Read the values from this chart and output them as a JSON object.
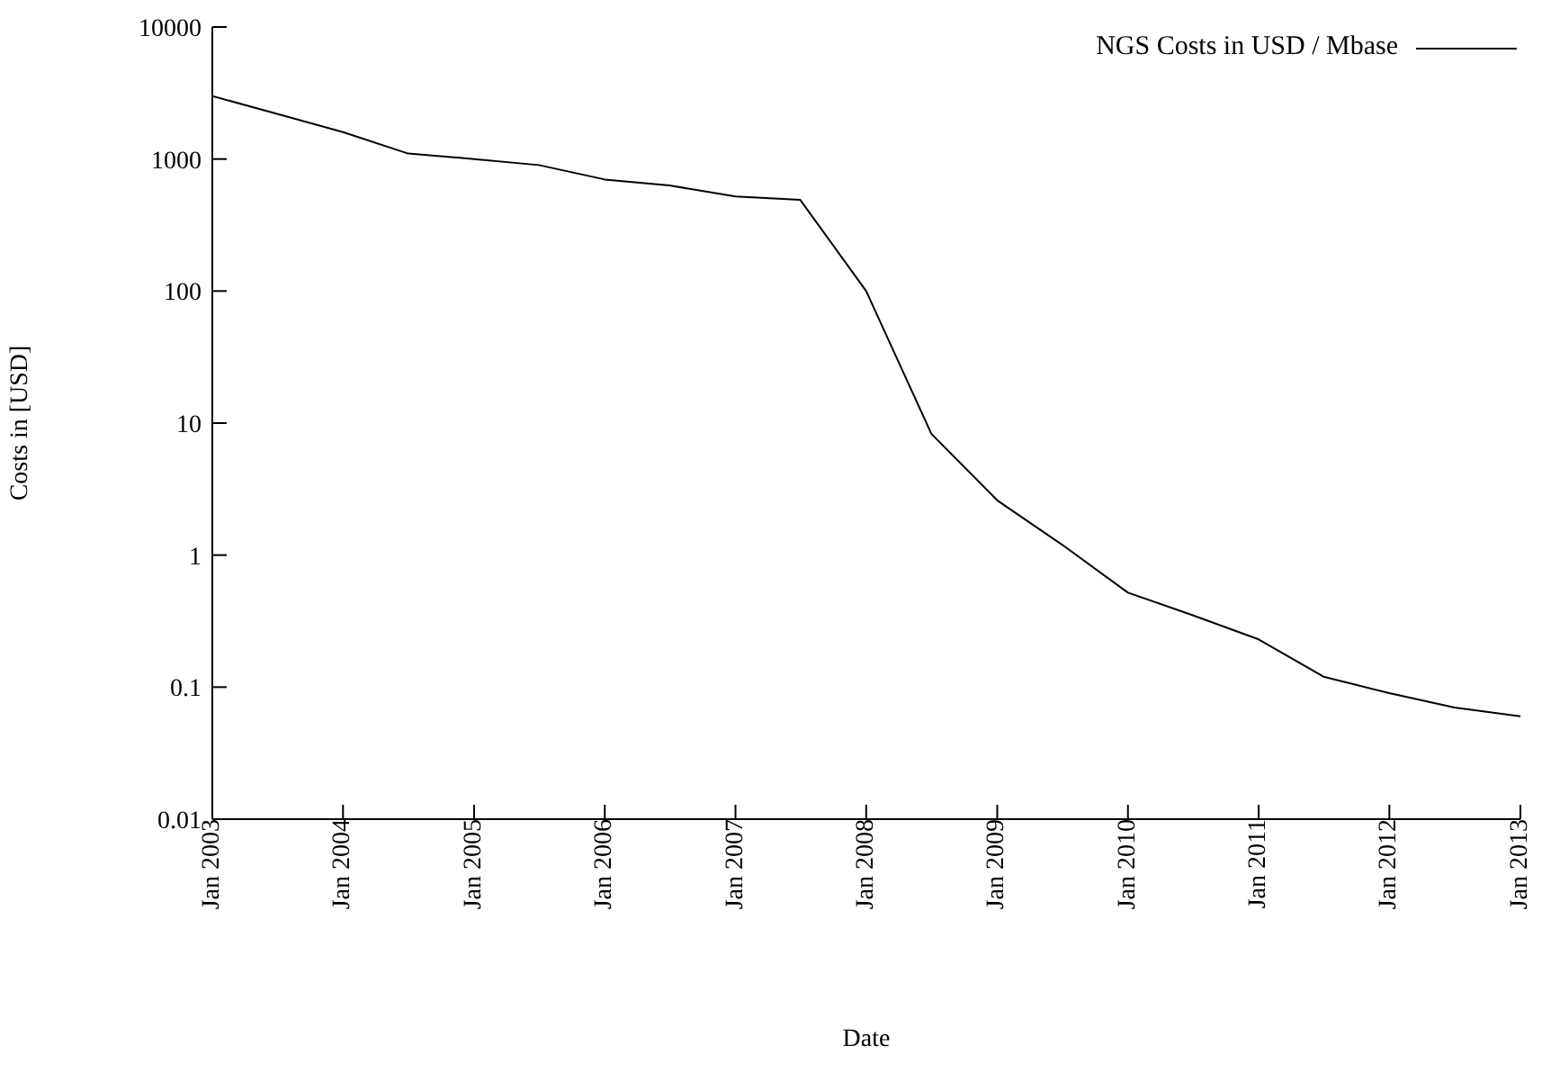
{
  "chart_data": {
    "type": "line",
    "xlabel": "Date",
    "ylabel": "Costs in [USD]",
    "x": [
      "2003-01",
      "2003-07",
      "2004-01",
      "2004-07",
      "2005-01",
      "2005-07",
      "2006-01",
      "2006-07",
      "2007-01",
      "2007-07",
      "2008-01",
      "2008-07",
      "2009-01",
      "2009-07",
      "2010-01",
      "2010-07",
      "2011-01",
      "2011-07",
      "2012-01",
      "2012-07",
      "2013-01"
    ],
    "series": [
      {
        "name": "NGS Costs in USD / Mbase",
        "color": "#000000",
        "values": [
          3000,
          2200,
          1600,
          1100,
          1000,
          900,
          700,
          630,
          520,
          490,
          100,
          8.3,
          2.6,
          1.2,
          0.52,
          0.35,
          0.23,
          0.12,
          0.09,
          0.07,
          0.06
        ]
      }
    ],
    "log": "y",
    "xlim": [
      "2003-01",
      "2013-01"
    ],
    "xticks": [
      {
        "value": "2003-01",
        "label": "Jan 2003"
      },
      {
        "value": "2004-01",
        "label": "Jan 2004"
      },
      {
        "value": "2005-01",
        "label": "Jan 2005"
      },
      {
        "value": "2006-01",
        "label": "Jan 2006"
      },
      {
        "value": "2007-01",
        "label": "Jan 2007"
      },
      {
        "value": "2008-01",
        "label": "Jan 2008"
      },
      {
        "value": "2009-01",
        "label": "Jan 2009"
      },
      {
        "value": "2010-01",
        "label": "Jan 2010"
      },
      {
        "value": "2011-01",
        "label": "Jan 2011"
      },
      {
        "value": "2012-01",
        "label": "Jan 2012"
      },
      {
        "value": "2013-01",
        "label": "Jan 2013"
      }
    ],
    "ylim": [
      0.01,
      10000
    ],
    "yticks": [
      0.01,
      0.1,
      1,
      10,
      100,
      1000,
      10000
    ],
    "legend": "top right",
    "grid": false
  }
}
